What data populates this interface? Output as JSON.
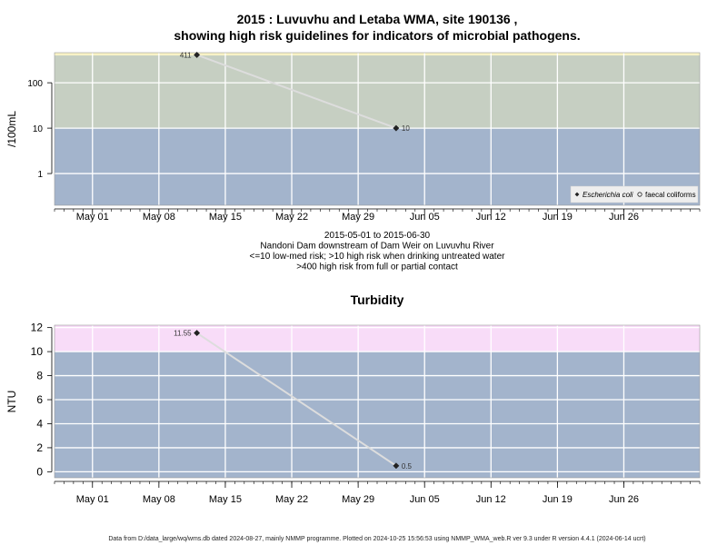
{
  "chart_data": [
    {
      "type": "line",
      "title": "2015 : Luvuvhu and Letaba WMA, site 190136 ,",
      "title_line2": "showing high risk guidelines for indicators of microbial pathogens.",
      "ylabel": "/100mL",
      "y_scale": "log",
      "ylim": [
        0.2,
        460
      ],
      "y_ticks": [
        1,
        10,
        100
      ],
      "y_tick_labels": [
        "1",
        "10",
        "100"
      ],
      "x_range": [
        "2015-04-27",
        "2015-07-04"
      ],
      "x_ticks": [
        "2015-05-01",
        "2015-05-08",
        "2015-05-15",
        "2015-05-22",
        "2015-05-29",
        "2015-06-05",
        "2015-06-12",
        "2015-06-19",
        "2015-06-26"
      ],
      "x_tick_labels": [
        "May 01",
        "May 08",
        "May 15",
        "May 22",
        "May 29",
        "Jun 05",
        "Jun 12",
        "Jun 19",
        "Jun 26"
      ],
      "bands": [
        {
          "from": 0.2,
          "to": 10,
          "color": "#a3b4cc"
        },
        {
          "from": 10,
          "to": 400,
          "color": "#c6cfc2"
        },
        {
          "from": 400,
          "to": 460,
          "color": "#f8f2c6"
        }
      ],
      "series": [
        {
          "name": "Escherichia coli",
          "color": "#222222",
          "points": [
            {
              "x": "2015-05-12",
              "y": 411,
              "label": "411"
            },
            {
              "x": "2015-06-02",
              "y": 10,
              "label": "10"
            }
          ]
        }
      ],
      "legend": {
        "placement": "bottom-right",
        "entries": [
          {
            "label": "Escherichia coli",
            "marker": "filled-diamond",
            "italic": true
          },
          {
            "label": "faecal coliforms",
            "marker": "open-circle",
            "italic": false
          }
        ]
      },
      "grid": true,
      "caption_lines": [
        "2015-05-01 to 2015-06-30",
        "Nandoni Dam downstream of Dam Weir on Luvuvhu River",
        "<=10 low-med risk; >10 high risk when drinking untreated water",
        ">400 high risk from full or partial contact"
      ]
    },
    {
      "type": "line",
      "title": "Turbidity",
      "ylabel": "NTU",
      "y_scale": "linear",
      "ylim": [
        -0.5,
        12.2
      ],
      "y_ticks": [
        0,
        2,
        4,
        6,
        8,
        10,
        12
      ],
      "y_tick_labels": [
        "0",
        "2",
        "4",
        "6",
        "8",
        "10",
        "12"
      ],
      "x_range": [
        "2015-04-27",
        "2015-07-04"
      ],
      "x_ticks": [
        "2015-05-01",
        "2015-05-08",
        "2015-05-15",
        "2015-05-22",
        "2015-05-29",
        "2015-06-05",
        "2015-06-12",
        "2015-06-19",
        "2015-06-26"
      ],
      "x_tick_labels": [
        "May 01",
        "May 08",
        "May 15",
        "May 22",
        "May 29",
        "Jun 05",
        "Jun 12",
        "Jun 19",
        "Jun 26"
      ],
      "bands": [
        {
          "from": -0.5,
          "to": 10,
          "color": "#a3b4cc"
        },
        {
          "from": 10,
          "to": 12.2,
          "color": "#f8dcf8"
        }
      ],
      "series": [
        {
          "color": "#222222",
          "points": [
            {
              "x": "2015-05-12",
              "y": 11.55,
              "label": "11.55"
            },
            {
              "x": "2015-06-02",
              "y": 0.5,
              "label": "0.5"
            }
          ]
        }
      ],
      "grid": true
    }
  ],
  "footer": "Data from D:/data_large/wq/wms.db dated 2024-08-27, mainly NMMP programme. Plotted on 2024-10-25 15:56:53 using NMMP_WMA_web.R ver 9.3 under R version 4.4.1 (2024-06-14 ucrt)"
}
